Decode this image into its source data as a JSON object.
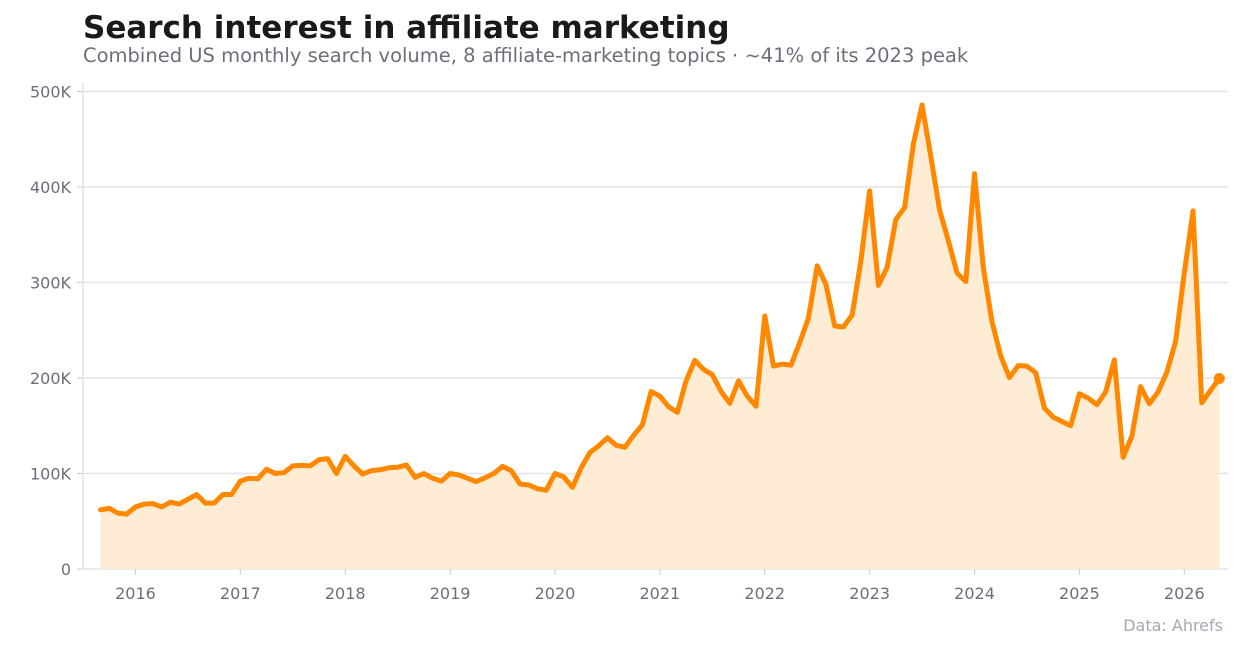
{
  "title": "Search interest in affiliate marketing",
  "subtitle": "Combined US monthly search volume, 8 affiliate-marketing topics · ~41% of its 2023 peak",
  "source": "Data: Ahrefs",
  "colors": {
    "line": "#ff8800",
    "area": "#ffecd5",
    "grid": "#e2e4e8",
    "axis": "#c8ccd2",
    "text": "#6b6f7a"
  },
  "chart_data": {
    "type": "area",
    "xlabel": "",
    "ylabel": "",
    "ylim": [
      0,
      510000
    ],
    "xlim": [
      "2015-07",
      "2026-06"
    ],
    "grid": true,
    "y_ticks": [
      0,
      100000,
      200000,
      300000,
      400000,
      500000
    ],
    "y_tick_labels": [
      "0",
      "100K",
      "200K",
      "300K",
      "400K",
      "500K"
    ],
    "x_ticks": [
      "2016-01",
      "2017-01",
      "2018-01",
      "2019-01",
      "2020-01",
      "2021-01",
      "2022-01",
      "2023-01",
      "2024-01",
      "2025-01",
      "2026-01"
    ],
    "x_tick_labels": [
      "2016",
      "2017",
      "2018",
      "2019",
      "2020",
      "2021",
      "2022",
      "2023",
      "2024",
      "2025",
      "2026"
    ],
    "series": [
      {
        "x": [
          "2015-09",
          "2015-10",
          "2015-11",
          "2015-12",
          "2016-01",
          "2016-02",
          "2016-03",
          "2016-04",
          "2016-05",
          "2016-06",
          "2016-07",
          "2016-08",
          "2016-09",
          "2016-10",
          "2016-11",
          "2016-12",
          "2017-01",
          "2017-02",
          "2017-03",
          "2017-04",
          "2017-05",
          "2017-06",
          "2017-07",
          "2017-08",
          "2017-09",
          "2017-10",
          "2017-11",
          "2017-12",
          "2018-01",
          "2018-02",
          "2018-03",
          "2018-04",
          "2018-05",
          "2018-06",
          "2018-07",
          "2018-08",
          "2018-09",
          "2018-10",
          "2018-11",
          "2018-12",
          "2019-01",
          "2019-02",
          "2019-03",
          "2019-04",
          "2019-05",
          "2019-06",
          "2019-07",
          "2019-08",
          "2019-09",
          "2019-10",
          "2019-11",
          "2019-12",
          "2020-01",
          "2020-02",
          "2020-03",
          "2020-04",
          "2020-05",
          "2020-06",
          "2020-07",
          "2020-08",
          "2020-09",
          "2020-10",
          "2020-11",
          "2020-12",
          "2021-01",
          "2021-02",
          "2021-03",
          "2021-04",
          "2021-05",
          "2021-06",
          "2021-07",
          "2021-08",
          "2021-09",
          "2021-10",
          "2021-11",
          "2021-12",
          "2022-01",
          "2022-02",
          "2022-03",
          "2022-04",
          "2022-05",
          "2022-06",
          "2022-07",
          "2022-08",
          "2022-09",
          "2022-10",
          "2022-11",
          "2022-12",
          "2023-01",
          "2023-02",
          "2023-03",
          "2023-04",
          "2023-05",
          "2023-06",
          "2023-07",
          "2023-08",
          "2023-09",
          "2023-10",
          "2023-11",
          "2023-12",
          "2024-01",
          "2024-02",
          "2024-03",
          "2024-04",
          "2024-05",
          "2024-06",
          "2024-07",
          "2024-08",
          "2024-09",
          "2024-10",
          "2024-11",
          "2024-12",
          "2025-01",
          "2025-02",
          "2025-03",
          "2025-04",
          "2025-05",
          "2025-06",
          "2025-07",
          "2025-08",
          "2025-09",
          "2025-10",
          "2025-11",
          "2025-12",
          "2026-01",
          "2026-02",
          "2026-03",
          "2026-04",
          "2026-05"
        ],
        "values": [
          62000,
          63500,
          58500,
          57500,
          65000,
          68000,
          68500,
          65000,
          70000,
          68000,
          73000,
          78000,
          69000,
          69000,
          78000,
          78000,
          92000,
          95000,
          94500,
          104500,
          100000,
          101000,
          108000,
          108500,
          108000,
          114500,
          115500,
          100000,
          118000,
          108000,
          99500,
          103000,
          104000,
          106000,
          106500,
          109000,
          96000,
          100000,
          95000,
          92000,
          100000,
          98500,
          95000,
          91500,
          95500,
          100000,
          107500,
          103000,
          89000,
          88000,
          84000,
          82500,
          100000,
          96500,
          85500,
          106000,
          122000,
          129000,
          137500,
          129500,
          127500,
          140000,
          151000,
          186000,
          181000,
          170000,
          164000,
          197000,
          218500,
          209000,
          203500,
          186000,
          173500,
          197000,
          181000,
          170500,
          265000,
          212500,
          214500,
          213500,
          237000,
          263000,
          317500,
          298000,
          254500,
          253500,
          266000,
          323000,
          396000,
          297000,
          316000,
          366000,
          378500,
          445000,
          486000,
          432000,
          376000,
          344000,
          310000,
          301000,
          414000,
          316000,
          259000,
          223000,
          200500,
          213000,
          212500,
          205500,
          168500,
          159000,
          154500,
          150000,
          183500,
          179000,
          172000,
          185500,
          219000,
          117000,
          139000,
          191000,
          173000,
          185500,
          206000,
          238000,
          310000,
          375000,
          174000,
          187000,
          199500
        ]
      }
    ]
  }
}
